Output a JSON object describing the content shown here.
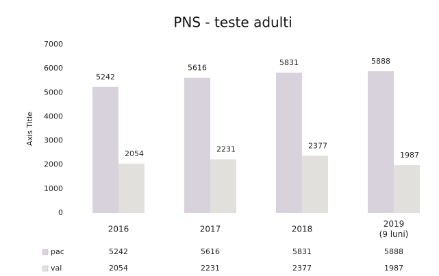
{
  "chart_data": {
    "type": "bar",
    "title": "PNS - teste adulti",
    "y_label": "Axis Title",
    "categories": [
      "2016",
      "2017",
      "2018",
      "2019\n(9 luni)"
    ],
    "series": [
      {
        "name": "pac",
        "color": "#d8d2dc",
        "values": [
          5242,
          5616,
          5831,
          5888
        ]
      },
      {
        "name": "val",
        "color": "#e1e0dd",
        "values": [
          2054,
          2231,
          2377,
          1987
        ]
      }
    ],
    "ylim": [
      0,
      7000
    ],
    "yticks": [
      0,
      1000,
      2000,
      3000,
      4000,
      5000,
      6000,
      7000
    ],
    "grid": false,
    "data_table": true
  }
}
